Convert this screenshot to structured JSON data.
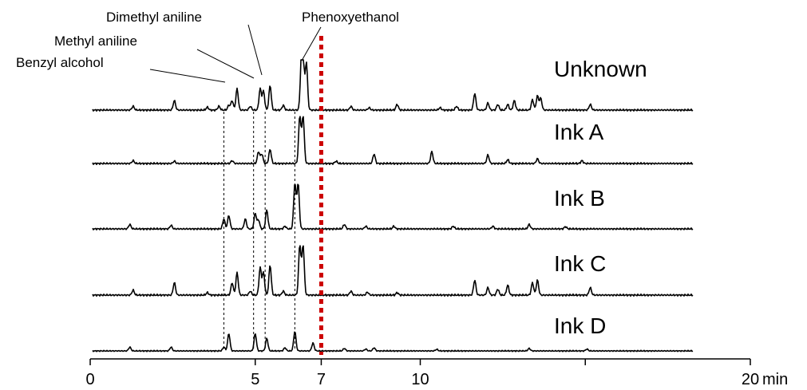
{
  "chart_data": {
    "type": "line",
    "title": "",
    "xlabel": "",
    "ylabel": "",
    "x_unit": "min",
    "xlim": [
      0,
      20
    ],
    "x_ticks": [
      {
        "value": 0,
        "label": "0"
      },
      {
        "value": 5,
        "label": "5"
      },
      {
        "value": 7,
        "label": "7"
      },
      {
        "value": 10,
        "label": "10"
      },
      {
        "value": 15,
        "label": ""
      },
      {
        "value": 20,
        "label": "20"
      }
    ],
    "grid": false,
    "cutoff_marker": {
      "x": 7,
      "color": "#cc0000",
      "style": "dotted"
    },
    "peak_annotations": [
      {
        "name": "Benzyl alcohol",
        "x": 4.05
      },
      {
        "name": "Methyl aniline",
        "x": 4.95
      },
      {
        "name": "Dimethyl aniline",
        "x": 5.25
      },
      {
        "name": "Phenoxyethanol",
        "x": 6.35
      }
    ],
    "series": [
      {
        "name": "Unknown",
        "shift": 0.1,
        "peaks": [
          [
            1.2,
            0.08
          ],
          [
            2.45,
            0.2
          ],
          [
            3.45,
            0.06
          ],
          [
            3.8,
            0.08
          ],
          [
            4.1,
            0.1
          ],
          [
            4.2,
            0.2
          ],
          [
            4.35,
            0.45
          ],
          [
            4.75,
            0.08
          ],
          [
            5.05,
            0.45
          ],
          [
            5.15,
            0.4
          ],
          [
            5.35,
            0.52
          ],
          [
            5.75,
            0.1
          ],
          [
            6.3,
            1.0
          ],
          [
            6.35,
            1.0
          ],
          [
            6.45,
            1.0
          ],
          [
            7.8,
            0.08
          ],
          [
            8.35,
            0.05
          ],
          [
            9.2,
            0.12
          ],
          [
            10.5,
            0.05
          ],
          [
            11.0,
            0.08
          ],
          [
            11.55,
            0.35
          ],
          [
            11.95,
            0.15
          ],
          [
            12.25,
            0.12
          ],
          [
            12.55,
            0.12
          ],
          [
            12.75,
            0.2
          ],
          [
            13.3,
            0.22
          ],
          [
            13.45,
            0.3
          ],
          [
            13.55,
            0.25
          ],
          [
            15.05,
            0.12
          ]
        ]
      },
      {
        "name": "Ink A",
        "shift": 0.1,
        "peaks": [
          [
            1.2,
            0.06
          ],
          [
            2.45,
            0.05
          ],
          [
            4.2,
            0.06
          ],
          [
            5.0,
            0.25
          ],
          [
            5.1,
            0.2
          ],
          [
            5.35,
            0.3
          ],
          [
            6.25,
            1.0
          ],
          [
            6.35,
            1.0
          ],
          [
            7.35,
            0.05
          ],
          [
            8.5,
            0.2
          ],
          [
            10.25,
            0.25
          ],
          [
            11.95,
            0.18
          ],
          [
            12.55,
            0.08
          ],
          [
            13.45,
            0.1
          ],
          [
            14.8,
            0.06
          ]
        ]
      },
      {
        "name": "Ink B",
        "shift": 0.0,
        "peaks": [
          [
            1.2,
            0.1
          ],
          [
            2.45,
            0.08
          ],
          [
            4.05,
            0.22
          ],
          [
            4.2,
            0.3
          ],
          [
            4.7,
            0.22
          ],
          [
            5.0,
            0.35
          ],
          [
            5.1,
            0.2
          ],
          [
            5.35,
            0.42
          ],
          [
            5.9,
            0.06
          ],
          [
            6.2,
            1.0
          ],
          [
            6.3,
            1.0
          ],
          [
            7.7,
            0.1
          ],
          [
            8.35,
            0.06
          ],
          [
            9.2,
            0.06
          ],
          [
            11.0,
            0.06
          ],
          [
            12.2,
            0.06
          ],
          [
            13.3,
            0.1
          ],
          [
            14.4,
            0.05
          ]
        ]
      },
      {
        "name": "Ink C",
        "shift": 0.1,
        "peaks": [
          [
            1.2,
            0.1
          ],
          [
            2.45,
            0.25
          ],
          [
            3.45,
            0.05
          ],
          [
            4.2,
            0.25
          ],
          [
            4.35,
            0.45
          ],
          [
            4.75,
            0.08
          ],
          [
            5.05,
            0.55
          ],
          [
            5.15,
            0.45
          ],
          [
            5.35,
            0.6
          ],
          [
            5.75,
            0.08
          ],
          [
            6.25,
            1.0
          ],
          [
            6.35,
            1.0
          ],
          [
            7.8,
            0.08
          ],
          [
            8.3,
            0.06
          ],
          [
            9.2,
            0.05
          ],
          [
            11.55,
            0.3
          ],
          [
            11.95,
            0.15
          ],
          [
            12.25,
            0.12
          ],
          [
            12.55,
            0.2
          ],
          [
            13.3,
            0.25
          ],
          [
            13.45,
            0.3
          ],
          [
            15.05,
            0.15
          ]
        ]
      },
      {
        "name": "Ink D",
        "shift": 0.0,
        "peaks": [
          [
            1.2,
            0.12
          ],
          [
            2.45,
            0.12
          ],
          [
            4.05,
            0.12
          ],
          [
            4.2,
            0.55
          ],
          [
            5.0,
            0.55
          ],
          [
            5.35,
            0.4
          ],
          [
            5.9,
            0.1
          ],
          [
            6.2,
            0.62
          ],
          [
            6.75,
            0.25
          ],
          [
            7.7,
            0.08
          ],
          [
            8.35,
            0.06
          ],
          [
            8.6,
            0.1
          ],
          [
            10.5,
            0.05
          ],
          [
            13.3,
            0.08
          ],
          [
            15.05,
            0.06
          ]
        ]
      }
    ]
  }
}
